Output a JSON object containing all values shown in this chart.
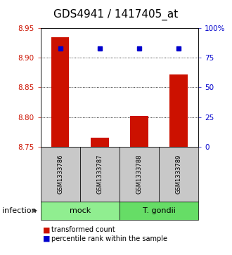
{
  "title": "GDS4941 / 1417405_at",
  "samples": [
    "GSM1333786",
    "GSM1333787",
    "GSM1333788",
    "GSM1333789"
  ],
  "red_values": [
    8.935,
    8.765,
    8.802,
    8.872
  ],
  "blue_values": [
    83,
    83,
    83,
    83
  ],
  "ylim_left": [
    8.75,
    8.95
  ],
  "ylim_right": [
    0,
    100
  ],
  "left_ticks": [
    8.75,
    8.8,
    8.85,
    8.9,
    8.95
  ],
  "right_ticks": [
    0,
    25,
    50,
    75,
    100
  ],
  "right_tick_labels": [
    "0",
    "25",
    "50",
    "75",
    "100%"
  ],
  "group_labels": [
    "mock",
    "T. gondii"
  ],
  "group_colors": [
    "#90EE90",
    "#66DD66"
  ],
  "group_row_label": "infection",
  "bar_color": "#CC1100",
  "dot_color": "#0000CC",
  "bar_width": 0.45,
  "bg_color": "#FFFFFF",
  "plot_bg": "#FFFFFF",
  "sample_box_color": "#C8C8C8",
  "label_bar": "transformed count",
  "label_dot": "percentile rank within the sample",
  "title_fontsize": 11,
  "axis_label_color_left": "#CC1100",
  "axis_label_color_right": "#0000CC",
  "grid_ticks": [
    8.8,
    8.85,
    8.9
  ]
}
